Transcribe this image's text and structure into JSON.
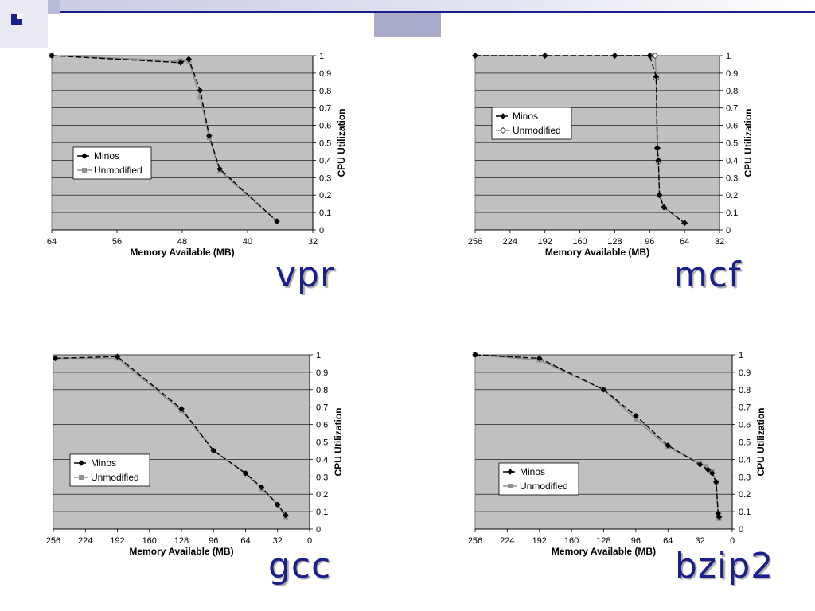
{
  "slide": {
    "accent_colors": {
      "brand": "#1a1f8c",
      "bullet": "#1a1f8c",
      "header_band": "#c6c9e0",
      "header_block": "#a9acc9",
      "plot_bg": "#c0c0c0",
      "minos": "#000000",
      "unmodified": "#909090"
    }
  },
  "chart_data": [
    {
      "type": "line",
      "benchmark": "vpr",
      "xlabel": "Memory Available (MB)",
      "ylabel": "CPU Utilization",
      "xlim": [
        64,
        32
      ],
      "x_ticks": [
        64,
        56,
        48,
        40,
        32
      ],
      "ylim": [
        0,
        1
      ],
      "y_ticks": [
        "0",
        "0.1",
        "0.2",
        "0.3",
        "0.4",
        "0.5",
        "0.6",
        "0.7",
        "0.8",
        "0.9",
        "1"
      ],
      "grid": true,
      "legend_position": "center-left",
      "series": [
        {
          "name": "Minos",
          "marker": "diamond",
          "dash": "dashed",
          "points": [
            [
              64,
              1.0
            ],
            [
              48.2,
              0.96
            ],
            [
              47.2,
              0.98
            ],
            [
              45.8,
              0.8
            ],
            [
              44.7,
              0.54
            ],
            [
              43.4,
              0.35
            ],
            [
              36.4,
              0.05
            ]
          ]
        },
        {
          "name": "Unmodified",
          "marker": "square",
          "dash": "solid",
          "points": [
            [
              64,
              1.0
            ],
            [
              48.2,
              0.97
            ],
            [
              47.2,
              0.97
            ],
            [
              45.8,
              0.76
            ],
            [
              44.7,
              0.53
            ],
            [
              43.4,
              0.34
            ],
            [
              36.4,
              0.05
            ]
          ]
        }
      ]
    },
    {
      "type": "line",
      "benchmark": "mcf",
      "xlabel": "Memory Available (MB)",
      "ylabel": "CPU Utilization",
      "xlim": [
        256,
        32
      ],
      "x_ticks": [
        256,
        224,
        192,
        160,
        128,
        96,
        64,
        32
      ],
      "ylim": [
        0,
        1
      ],
      "y_ticks": [
        "0",
        "0.1",
        "0.2",
        "0.3",
        "0.4",
        "0.5",
        "0.6",
        "0.7",
        "0.8",
        "0.9",
        "1"
      ],
      "grid": true,
      "legend_position": "upper-left",
      "series": [
        {
          "name": "Minos",
          "marker": "diamond",
          "dash": "dashed",
          "points": [
            [
              256,
              1.0
            ],
            [
              192,
              1.0
            ],
            [
              128,
              1.0
            ],
            [
              96,
              1.0
            ],
            [
              90,
              0.88
            ],
            [
              89,
              0.47
            ],
            [
              88,
              0.4
            ],
            [
              87,
              0.2
            ],
            [
              83,
              0.13
            ],
            [
              64,
              0.04
            ]
          ]
        },
        {
          "name": "Unmodified",
          "marker": "diamond-open",
          "dash": "solid",
          "points": [
            [
              256,
              1.0
            ],
            [
              192,
              1.0
            ],
            [
              128,
              1.0
            ],
            [
              95,
              1.0
            ],
            [
              91,
              1.0
            ],
            [
              90,
              0.87
            ],
            [
              89,
              0.47
            ],
            [
              88,
              0.39
            ],
            [
              87,
              0.2
            ],
            [
              83,
              0.13
            ],
            [
              64,
              0.04
            ]
          ]
        }
      ]
    },
    {
      "type": "line",
      "benchmark": "gcc",
      "xlabel": "Memory Available (MB)",
      "ylabel": "CPU Utilization",
      "xlim": [
        256,
        0
      ],
      "x_ticks": [
        256,
        224,
        192,
        160,
        128,
        96,
        64,
        32,
        0
      ],
      "ylim": [
        0,
        1
      ],
      "y_ticks": [
        "0",
        "0.1",
        "0.2",
        "0.3",
        "0.4",
        "0.5",
        "0.6",
        "0.7",
        "0.8",
        "0.9",
        "1"
      ],
      "grid": true,
      "legend_position": "lower-left",
      "series": [
        {
          "name": "Minos",
          "marker": "diamond",
          "dash": "dashed",
          "points": [
            [
              254,
              0.98
            ],
            [
              192,
              0.99
            ],
            [
              128,
              0.69
            ],
            [
              96,
              0.45
            ],
            [
              64,
              0.32
            ],
            [
              48,
              0.24
            ],
            [
              32,
              0.14
            ],
            [
              24,
              0.08
            ]
          ]
        },
        {
          "name": "Unmodified",
          "marker": "square",
          "dash": "solid",
          "points": [
            [
              254,
              0.98
            ],
            [
              192,
              0.98
            ],
            [
              128,
              0.68
            ],
            [
              96,
              0.45
            ],
            [
              64,
              0.32
            ],
            [
              48,
              0.23
            ],
            [
              32,
              0.14
            ],
            [
              24,
              0.07
            ]
          ]
        }
      ]
    },
    {
      "type": "line",
      "benchmark": "bzip2",
      "xlabel": "Memory Available (MB)",
      "ylabel": "CPU Utilization",
      "xlim": [
        256,
        0
      ],
      "x_ticks": [
        256,
        224,
        192,
        160,
        128,
        96,
        64,
        32,
        0
      ],
      "ylim": [
        0,
        1
      ],
      "y_ticks": [
        "0",
        "0.1",
        "0.2",
        "0.3",
        "0.4",
        "0.5",
        "0.6",
        "0.7",
        "0.8",
        "0.9",
        "1"
      ],
      "grid": true,
      "legend_position": "lower-left",
      "series": [
        {
          "name": "Minos",
          "marker": "diamond",
          "dash": "dashed",
          "points": [
            [
              256,
              1.0
            ],
            [
              192,
              0.98
            ],
            [
              128,
              0.8
            ],
            [
              96,
              0.65
            ],
            [
              64,
              0.48
            ],
            [
              32,
              0.37
            ],
            [
              24,
              0.34
            ],
            [
              20,
              0.32
            ],
            [
              16,
              0.27
            ],
            [
              14,
              0.09
            ],
            [
              13,
              0.07
            ]
          ]
        },
        {
          "name": "Unmodified",
          "marker": "square",
          "dash": "solid",
          "points": [
            [
              256,
              1.0
            ],
            [
              192,
              0.97
            ],
            [
              128,
              0.8
            ],
            [
              96,
              0.63
            ],
            [
              64,
              0.47
            ],
            [
              32,
              0.38
            ],
            [
              26,
              0.36
            ],
            [
              20,
              0.33
            ],
            [
              16,
              0.27
            ],
            [
              14,
              0.07
            ],
            [
              13,
              0.06
            ]
          ]
        }
      ]
    }
  ]
}
